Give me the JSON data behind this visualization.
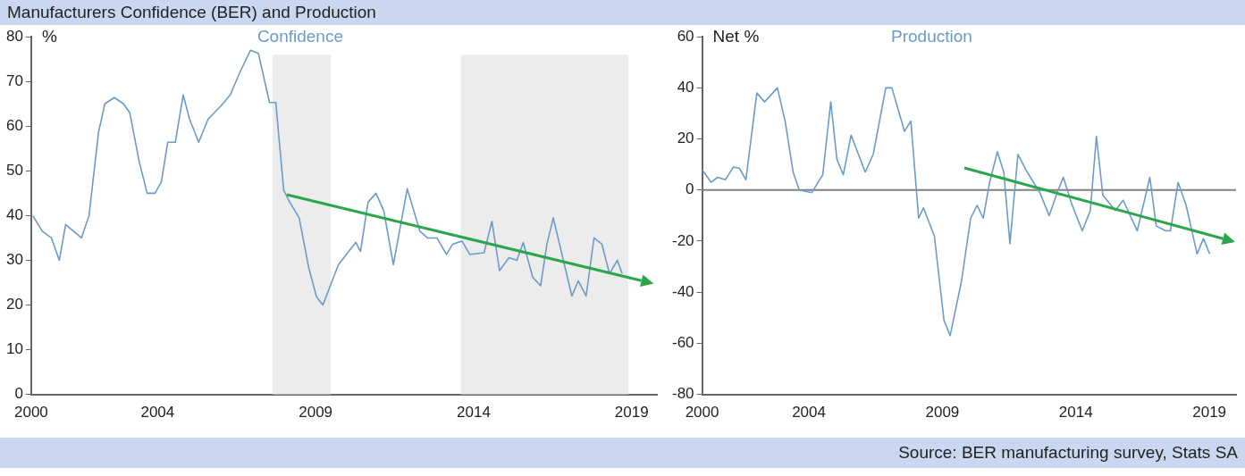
{
  "chart_data": [
    {
      "type": "line",
      "title": "Manufacturers Confidence (BER) and Production",
      "ylabel": "%",
      "xlim": [
        2000,
        2019.8
      ],
      "xticks": [
        2000,
        2004,
        2009,
        2014,
        2019
      ],
      "ylim": [
        0,
        80
      ],
      "yticks": [
        0,
        10,
        20,
        30,
        40,
        50,
        60,
        70,
        80
      ],
      "grid": false,
      "legend": false,
      "marker": "none",
      "line_style": "solid",
      "x": [
        2000.05,
        2000.35,
        2000.64,
        2000.89,
        2001.09,
        2001.59,
        2001.83,
        2002.13,
        2002.33,
        2002.63,
        2002.92,
        2003.12,
        2003.42,
        2003.67,
        2003.92,
        2004.12,
        2004.32,
        2004.56,
        2004.81,
        2005.01,
        2005.3,
        2005.6,
        2006.0,
        2006.3,
        2006.6,
        2006.94,
        2007.19,
        2007.54,
        2007.74,
        2007.99,
        2008.18,
        2008.48,
        2008.78,
        2009.03,
        2009.23,
        2009.72,
        2010.27,
        2010.42,
        2010.66,
        2010.91,
        2011.16,
        2011.46,
        2011.9,
        2012.3,
        2012.54,
        2012.84,
        2013.14,
        2013.34,
        2013.63,
        2013.88,
        2014.33,
        2014.58,
        2014.82,
        2015.12,
        2015.37,
        2015.57,
        2015.87,
        2016.12,
        2016.32,
        2016.52,
        2016.82,
        2017.11,
        2017.31,
        2017.56,
        2017.81,
        2018.06,
        2018.3,
        2018.55,
        2018.7
      ],
      "series": [
        {
          "name": "Confidence",
          "color": "#6a9bc9",
          "values": [
            40,
            36.5,
            35,
            30,
            38,
            35,
            40,
            58.6,
            65,
            66.4,
            65,
            63,
            52,
            45,
            45,
            47.6,
            56.4,
            56.4,
            67,
            61.6,
            56.4,
            61.6,
            64.5,
            67,
            72,
            77,
            76.3,
            65.3,
            65.3,
            45.7,
            43,
            39.5,
            28.4,
            21.8,
            20,
            29,
            34,
            32,
            43,
            45,
            41,
            29,
            46,
            36.5,
            35,
            35,
            31.3,
            33.6,
            34.3,
            31.3,
            31.7,
            38.7,
            27.7,
            30.6,
            30,
            34,
            26.2,
            24.3,
            33.6,
            39.5,
            30.6,
            22,
            25.4,
            22,
            35,
            33.6,
            27,
            30,
            27
          ]
        }
      ],
      "bands": [
        {
          "axis": "x",
          "from": 2007.64,
          "to": 2009.48,
          "color": "#ececec"
        },
        {
          "axis": "x",
          "from": 2013.59,
          "to": 2018.9,
          "color": "#ececec"
        }
      ]
    },
    {
      "type": "line",
      "ylabel": "Net %",
      "xlim": [
        2000,
        2020
      ],
      "xticks": [
        2000,
        2004,
        2009,
        2014,
        2019
      ],
      "ylim": [
        -80,
        60
      ],
      "yticks": [
        -80,
        -60,
        -40,
        -20,
        0,
        20,
        40,
        60
      ],
      "grid": false,
      "legend": false,
      "marker": "none",
      "line_style": "solid",
      "annotations": [
        "Source: BER manufacturing survey, Stats SA"
      ],
      "ref_lines": [
        {
          "axis": "y",
          "value": 0,
          "color": "#808080"
        }
      ],
      "x": [
        2000.0,
        2000.34,
        2000.58,
        2000.87,
        2001.17,
        2001.4,
        2001.64,
        2002.05,
        2002.34,
        2002.82,
        2003.11,
        2003.41,
        2003.64,
        2004.11,
        2004.52,
        2004.82,
        2005.05,
        2005.29,
        2005.58,
        2006.11,
        2006.41,
        2006.88,
        2007.11,
        2007.58,
        2007.82,
        2008.11,
        2008.29,
        2008.7,
        2009.06,
        2009.29,
        2009.71,
        2010.06,
        2010.3,
        2010.53,
        2010.77,
        2011.06,
        2011.3,
        2011.53,
        2011.83,
        2012.18,
        2012.65,
        2013.0,
        2013.3,
        2013.53,
        2013.83,
        2014.24,
        2014.54,
        2014.77,
        2015.01,
        2015.48,
        2015.77,
        2016.3,
        2016.77,
        2017.01,
        2017.36,
        2017.54,
        2017.83,
        2018.13,
        2018.54,
        2018.78,
        2019.01
      ],
      "series": [
        {
          "name": "Production",
          "color": "#6a9bc9",
          "values": [
            8,
            3,
            5,
            4,
            9,
            8.5,
            4,
            38,
            34.5,
            40,
            27,
            7,
            0,
            -1,
            6,
            34.5,
            12,
            6,
            21.5,
            7,
            14,
            40,
            40,
            23,
            27,
            -11,
            -7,
            -18,
            -51,
            -57,
            -36,
            -11,
            -6,
            -11,
            3,
            15,
            7,
            -21,
            14,
            7,
            -1,
            -10,
            -1,
            5,
            -5,
            -16,
            -8,
            21,
            -2,
            -8,
            -4,
            -16,
            5,
            -14,
            -16,
            -16,
            3,
            -6,
            -25,
            -19,
            -25
          ]
        }
      ]
    }
  ]
}
